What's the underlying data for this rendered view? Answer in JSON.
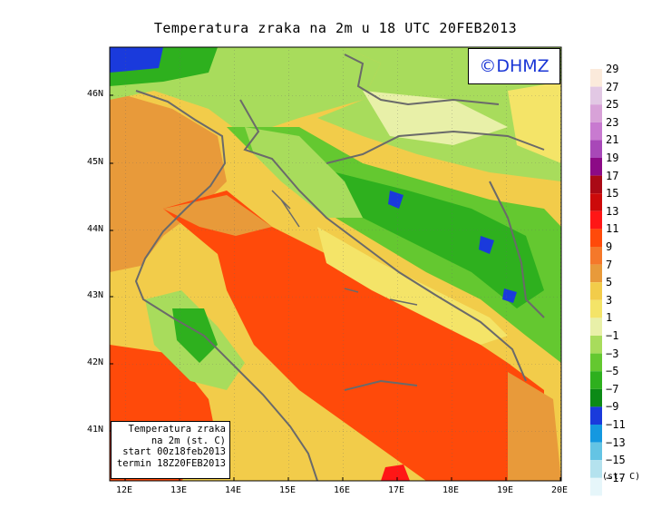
{
  "title": "Temperatura zraka na 2m u 18 UTC 20FEB2013",
  "logo": "©DHMZ",
  "info": {
    "line1": "Temperatura zraka",
    "line2": "na 2m (st. C)",
    "line3": "start 00z18feb2013",
    "line4": "termin 18Z20FEB2013"
  },
  "lat_labels": [
    "46N",
    "45N",
    "44N",
    "43N",
    "42N",
    "41N"
  ],
  "lon_labels": [
    "12E",
    "13E",
    "14E",
    "15E",
    "16E",
    "17E",
    "18E",
    "19E",
    "20E"
  ],
  "legend": {
    "unit": "(st. C)",
    "labels": [
      "29",
      "27",
      "25",
      "23",
      "21",
      "19",
      "17",
      "15",
      "13",
      "11",
      "9",
      "7",
      "5",
      "3",
      "1",
      "−1",
      "−3",
      "−5",
      "−7",
      "−9",
      "−11",
      "−13",
      "−15",
      "−17"
    ],
    "colors": [
      "#fbeadb",
      "#e2c8e4",
      "#d8a2d8",
      "#c87ad0",
      "#a848b8",
      "#8c0a86",
      "#aa0a16",
      "#cc0a0a",
      "#ff1616",
      "#ff4a0a",
      "#f5782a",
      "#e89a3a",
      "#f2cc4a",
      "#f4e468",
      "#e8f0a8",
      "#a8dc5c",
      "#64c830",
      "#2eb01e",
      "#0c8a16",
      "#1a3adc",
      "#1498e0",
      "#64c4e4",
      "#b4e2ee",
      "#e6f6fa"
    ],
    "range_min": -17,
    "range_max": 29,
    "step": 2
  },
  "map_extent": {
    "lon": [
      11.7,
      20.0
    ],
    "lat": [
      40.25,
      46.75
    ]
  }
}
